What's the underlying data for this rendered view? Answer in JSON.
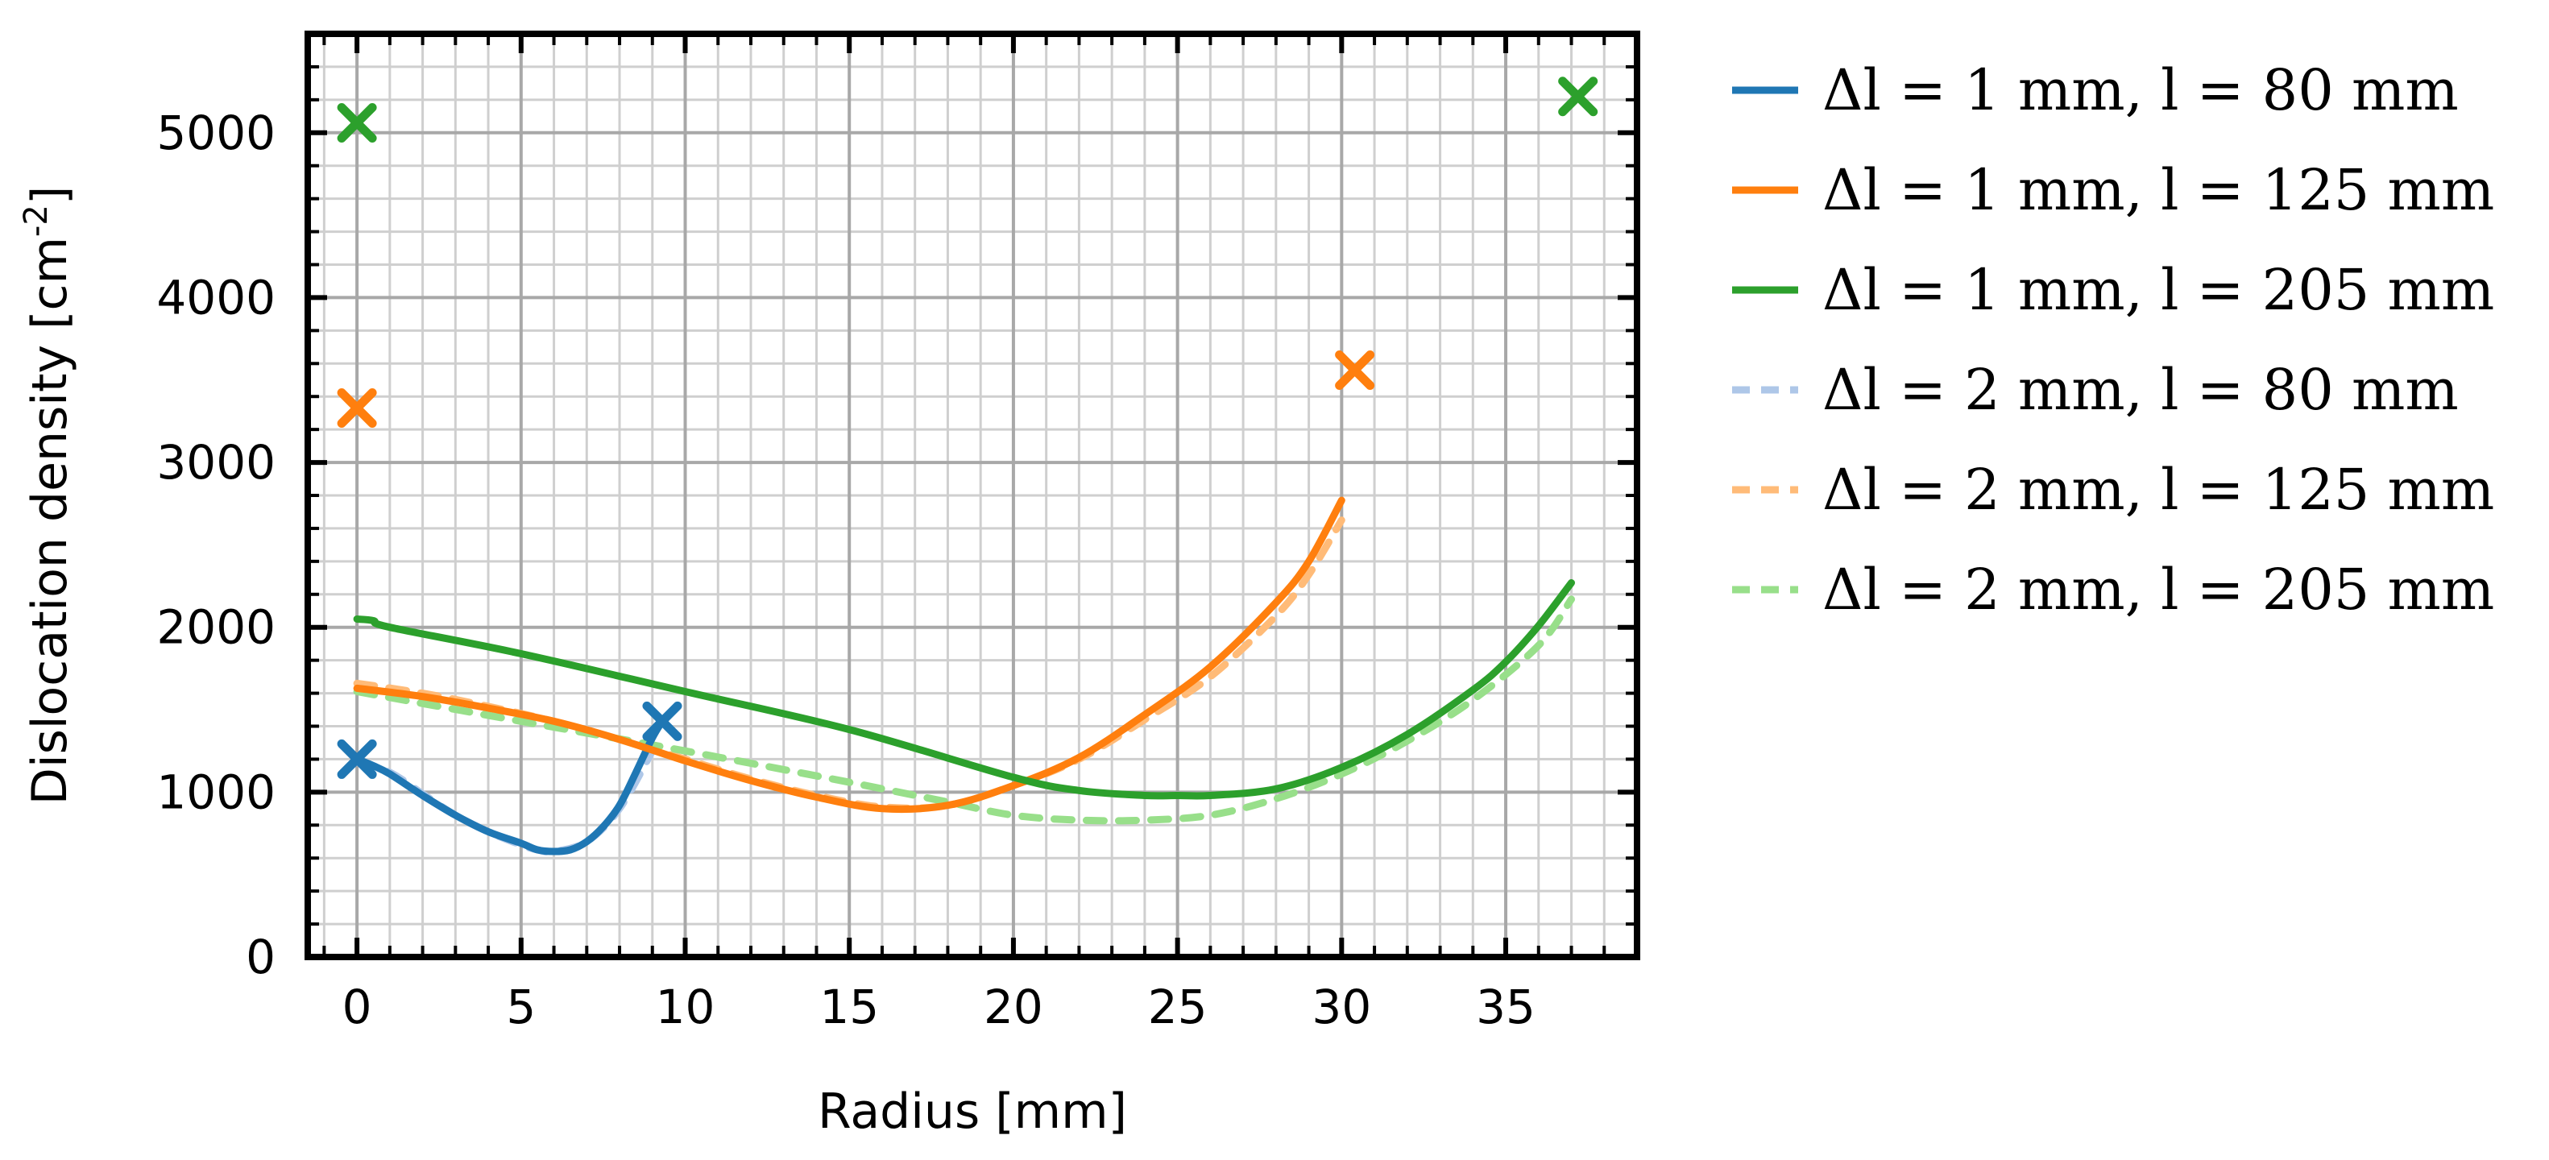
{
  "chart_data": {
    "type": "line",
    "title": "",
    "xlabel": "Radius [mm]",
    "ylabel": "Dislocation density [cm",
    "ylabel_exp": "-2",
    "ylabel_end": "]",
    "xlim": [
      -1.5,
      39
    ],
    "ylim": [
      0,
      5600
    ],
    "xticks": [
      0,
      5,
      10,
      15,
      20,
      25,
      30,
      35
    ],
    "yticks": [
      0,
      1000,
      2000,
      3000,
      4000,
      5000
    ],
    "grid": true,
    "minor_grid": true,
    "legend_position": "outside-right",
    "series": [
      {
        "name": "Δl = 1 mm, l = 80 mm",
        "color": "#1f77b4",
        "dash": "solid",
        "x": [
          0,
          0.5,
          1,
          2,
          3,
          4,
          5,
          5.5,
          6,
          6.5,
          7,
          7.5,
          8,
          8.5,
          9,
          9.3
        ],
        "y": [
          1200,
          1160,
          1110,
          980,
          860,
          760,
          690,
          650,
          640,
          650,
          700,
          790,
          920,
          1120,
          1330,
          1430
        ]
      },
      {
        "name": "Δl = 1 mm, l = 125 mm",
        "color": "#ff7f0e",
        "dash": "solid",
        "x": [
          0,
          2,
          4,
          6,
          8,
          10,
          12,
          14,
          16,
          18,
          20,
          22,
          24,
          26,
          28,
          29,
          30
        ],
        "y": [
          1630,
          1580,
          1510,
          1430,
          1320,
          1190,
          1070,
          970,
          900,
          920,
          1040,
          1210,
          1470,
          1760,
          2150,
          2400,
          2770
        ]
      },
      {
        "name": "Δl = 1 mm, l = 205 mm",
        "color": "#2ca02c",
        "dash": "solid",
        "x": [
          0,
          0.5,
          1,
          5,
          10,
          15,
          20,
          22,
          24,
          25,
          26,
          28,
          30,
          32,
          34,
          35,
          36,
          37
        ],
        "y": [
          2050,
          2040,
          2000,
          1840,
          1610,
          1380,
          1090,
          1010,
          980,
          980,
          980,
          1020,
          1150,
          1350,
          1620,
          1790,
          2010,
          2270
        ]
      },
      {
        "name": "Δl = 2 mm, l = 80 mm",
        "color": "#aec7e8",
        "dash": "dashed",
        "x": [
          0,
          1,
          2,
          3,
          4,
          5,
          5.5,
          6,
          7,
          8,
          9
        ],
        "y": [
          1180,
          1120,
          990,
          860,
          760,
          680,
          650,
          640,
          700,
          900,
          1250
        ]
      },
      {
        "name": "Δl = 2 mm, l = 125 mm",
        "color": "#ffbb78",
        "dash": "dashed",
        "x": [
          0,
          2,
          4,
          6,
          8,
          10,
          12,
          14,
          16,
          18,
          20,
          22,
          24,
          26,
          28,
          29,
          30
        ],
        "y": [
          1660,
          1600,
          1520,
          1430,
          1320,
          1200,
          1080,
          980,
          910,
          920,
          1040,
          1200,
          1440,
          1700,
          2070,
          2320,
          2650
        ]
      },
      {
        "name": "Δl = 2 mm, l = 205 mm",
        "color": "#98df8a",
        "dash": "dashed",
        "x": [
          0,
          5,
          10,
          15,
          18,
          20,
          22,
          24,
          26,
          28,
          30,
          32,
          34,
          36,
          37
        ],
        "y": [
          1610,
          1430,
          1250,
          1060,
          940,
          860,
          830,
          830,
          860,
          960,
          1110,
          1310,
          1560,
          1890,
          2170
        ]
      }
    ],
    "markers": [
      {
        "x": 0,
        "y": 1200,
        "color": "#1f77b4"
      },
      {
        "x": 9.3,
        "y": 1430,
        "color": "#1f77b4"
      },
      {
        "x": 0,
        "y": 3330,
        "color": "#ff7f0e"
      },
      {
        "x": 30.4,
        "y": 3560,
        "color": "#ff7f0e"
      },
      {
        "x": 0,
        "y": 5060,
        "color": "#2ca02c"
      },
      {
        "x": 37.2,
        "y": 5220,
        "color": "#2ca02c"
      }
    ]
  }
}
